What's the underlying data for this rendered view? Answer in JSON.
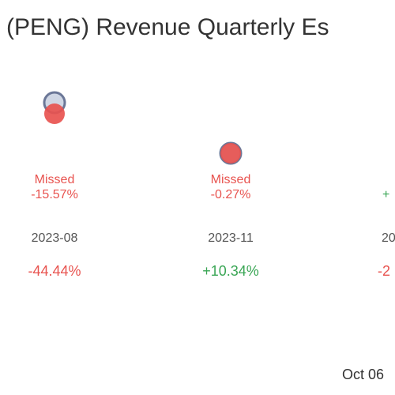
{
  "chart_data": {
    "type": "scatter",
    "title": "(PENG) Revenue Quarterly Es",
    "date_label": "Oct 06",
    "ylim": [
      0,
      1
    ],
    "categories": [
      "2023-08",
      "2023-11",
      "20"
    ],
    "series": [
      {
        "role": "estimate",
        "values": [
          1.0,
          0.27,
          null
        ]
      },
      {
        "role": "actual",
        "values": [
          0.84,
          0.27,
          null
        ]
      }
    ],
    "results": [
      {
        "status": "Missed",
        "surprise": "-15.57%",
        "change": "-44.44%",
        "tone": "negative"
      },
      {
        "status": "Missed",
        "surprise": "-0.27%",
        "change": "+10.34%",
        "tone": "mixed"
      },
      {
        "status": "",
        "surprise": "+",
        "change": "-2",
        "tone": "partial"
      }
    ]
  },
  "colors": {
    "estimate_fill": "#cfd6e4",
    "estimate_stroke": "#6b7797",
    "actual_fill": "#e8534f",
    "negative": "#e8534f",
    "positive": "#3aa655",
    "label": "#555555"
  }
}
